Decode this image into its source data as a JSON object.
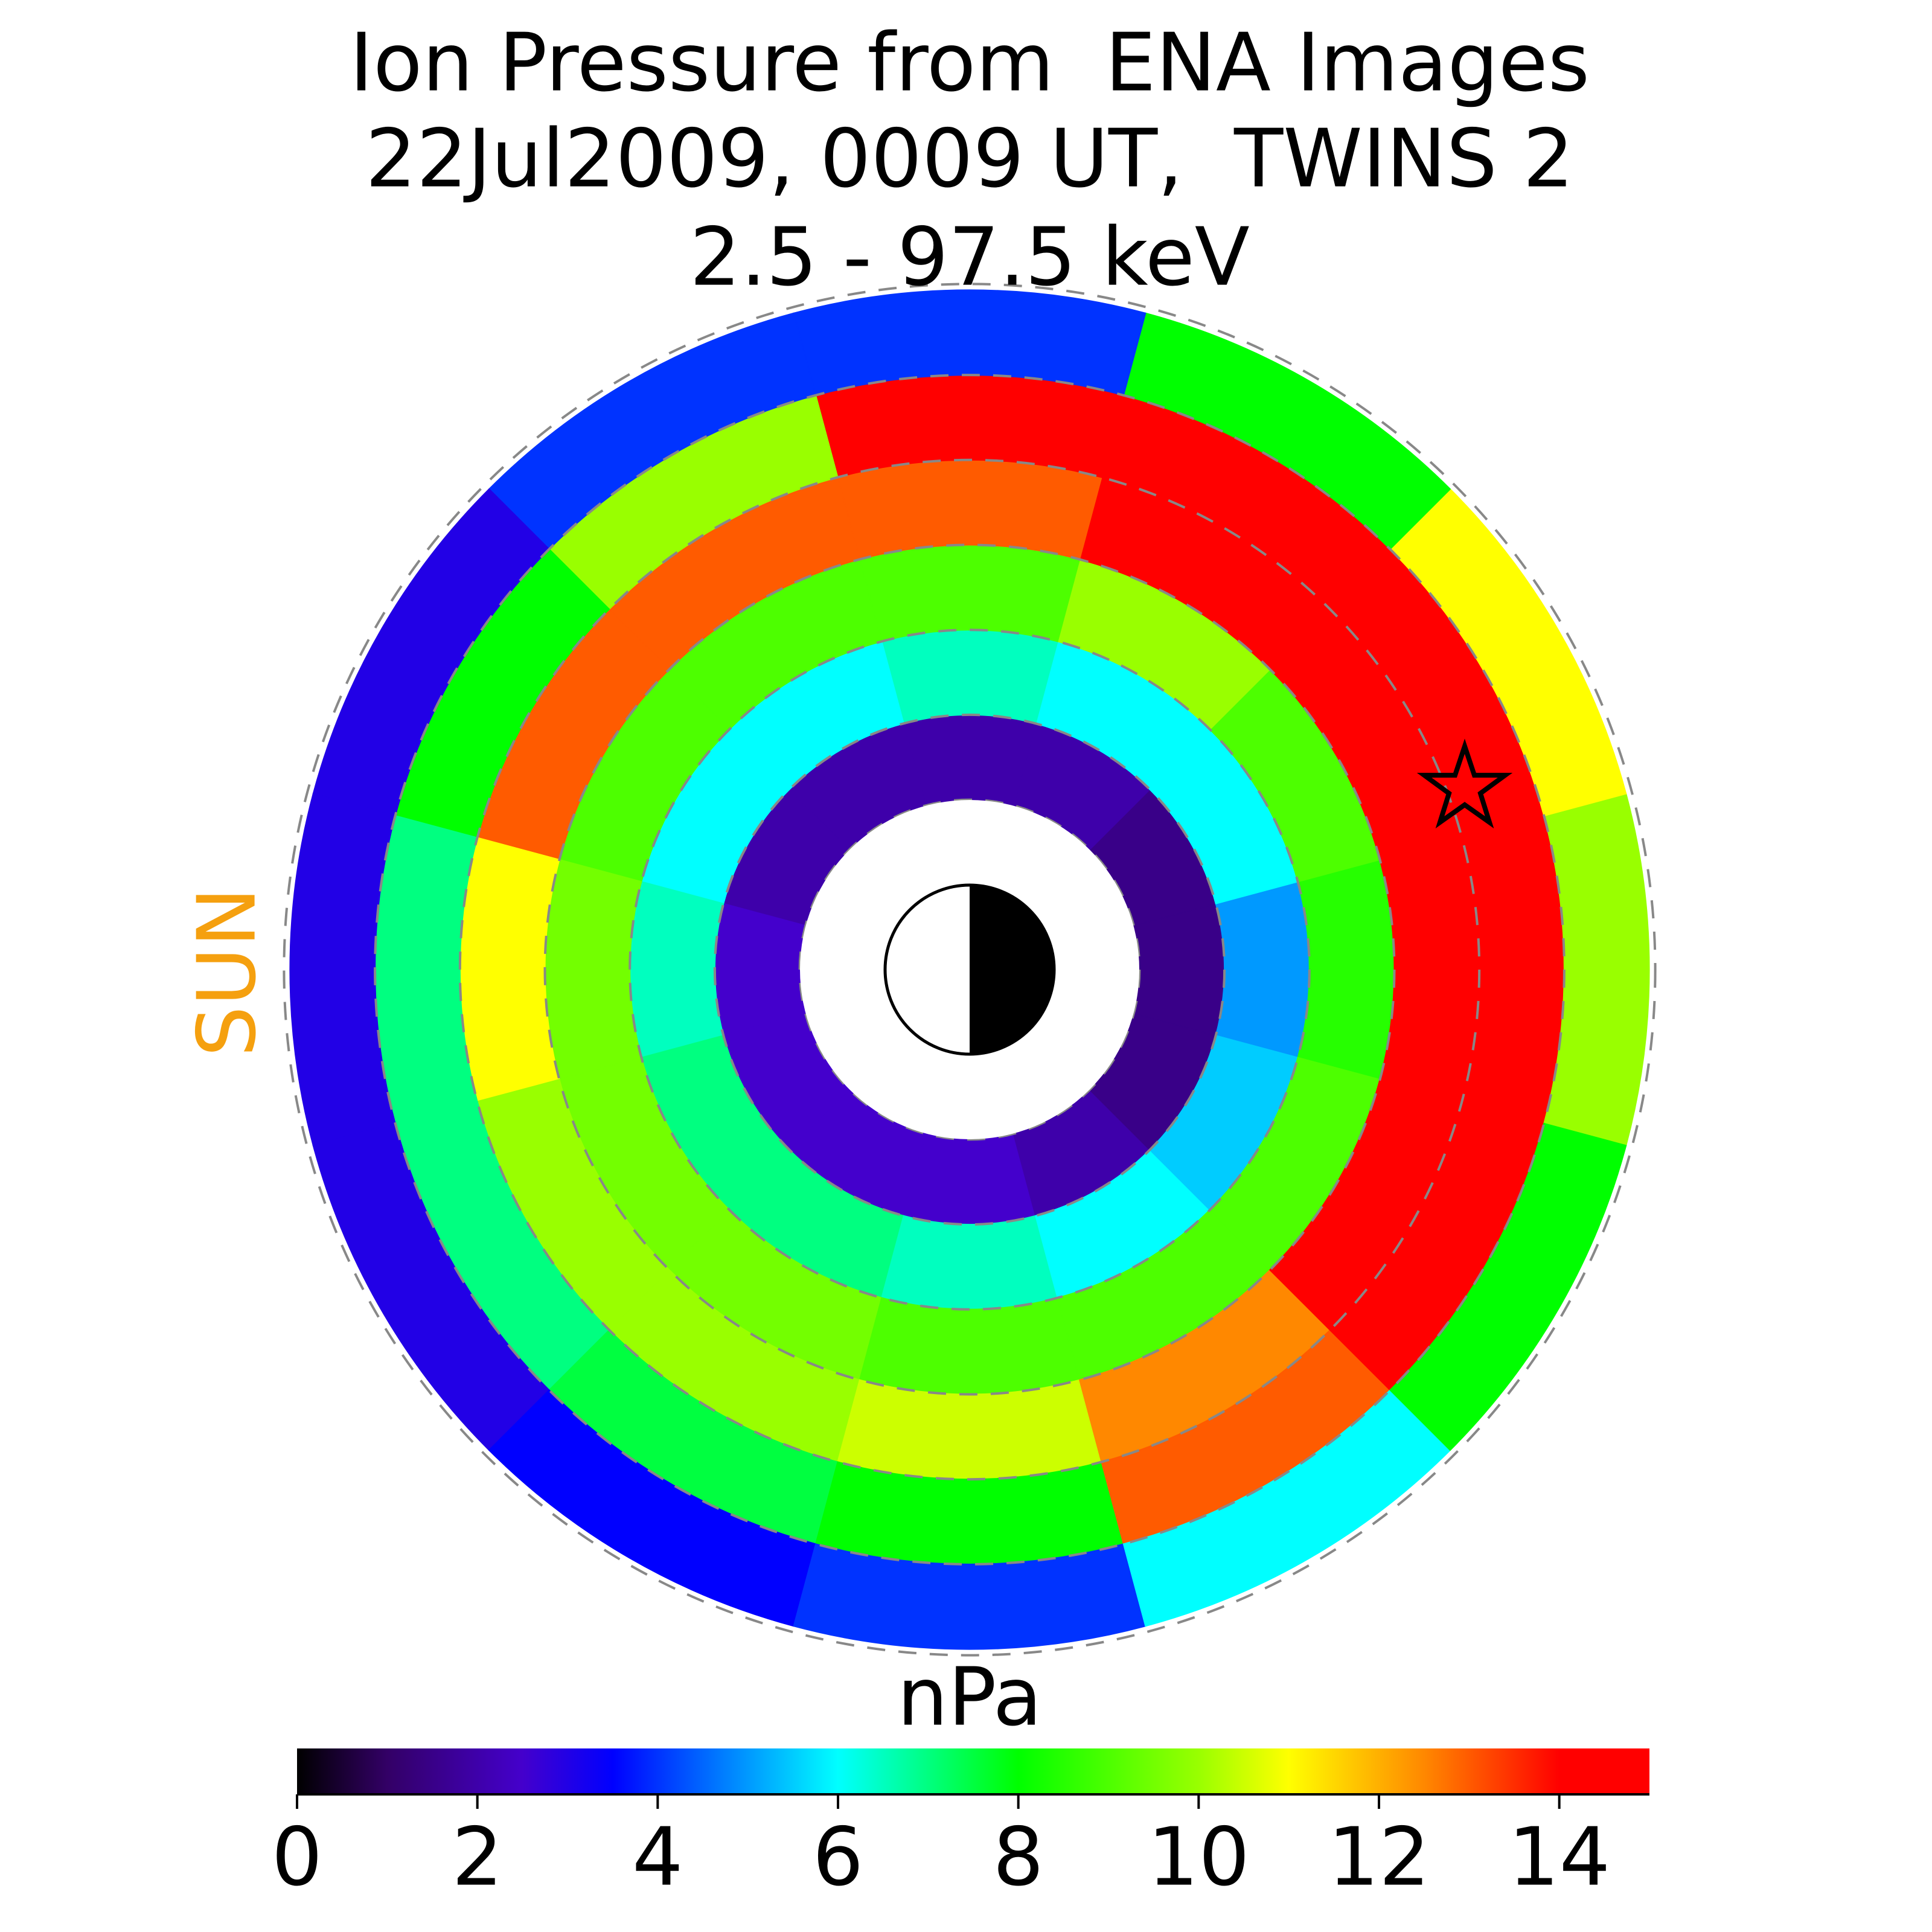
{
  "chart_data": {
    "type": "polar-heatmap",
    "title": [
      "Ion Pressure from  ENA Images",
      "22Jul2009, 0009 UT,  TWINS 2",
      "2.5 - 97.5 keV"
    ],
    "sun_label": "SUN",
    "colorbar_label": "nPa",
    "r_edges": [
      2,
      3,
      4,
      5,
      6,
      7,
      8
    ],
    "rticks": [
      2,
      3,
      4,
      5,
      6,
      7,
      8
    ],
    "sector_angles": [
      0,
      30,
      60,
      90,
      120,
      150,
      180,
      210,
      240,
      270,
      300,
      330
    ],
    "values": [
      [
        1.5,
        1.5,
        2,
        2,
        2,
        2,
        2.5,
        2.5,
        2.5,
        2.5,
        2,
        1.5
      ],
      [
        5,
        6,
        6,
        6.5,
        6,
        6,
        6.5,
        7,
        7,
        6.5,
        6,
        5.5
      ],
      [
        8.5,
        9,
        10,
        9,
        9,
        9,
        9.5,
        9.5,
        9.5,
        9,
        9,
        9
      ],
      [
        14,
        14,
        14,
        13,
        13,
        13,
        11,
        10,
        10,
        10.5,
        12.5,
        14
      ],
      [
        14,
        14,
        14,
        14,
        10,
        8,
        7,
        7,
        7.5,
        8,
        13,
        14
      ],
      [
        10,
        11,
        8,
        4,
        4,
        3,
        3,
        3,
        3.5,
        4,
        6,
        8
      ]
    ],
    "clim": [
      0,
      15
    ],
    "cticks": [
      0,
      2,
      4,
      6,
      8,
      10,
      12,
      14
    ],
    "colormap": [
      {
        "value": 0,
        "color": "#000000"
      },
      {
        "value": 1,
        "color": "#330066"
      },
      {
        "value": 2.5,
        "color": "#4400cc"
      },
      {
        "value": 3.5,
        "color": "#0000ff"
      },
      {
        "value": 6,
        "color": "#00ffff"
      },
      {
        "value": 8,
        "color": "#00ff00"
      },
      {
        "value": 10,
        "color": "#99ff00"
      },
      {
        "value": 11,
        "color": "#ffff00"
      },
      {
        "value": 12.5,
        "color": "#ff8800"
      },
      {
        "value": 14,
        "color": "#ff0000"
      },
      {
        "value": 15,
        "color": "#ff0000"
      }
    ]
  }
}
